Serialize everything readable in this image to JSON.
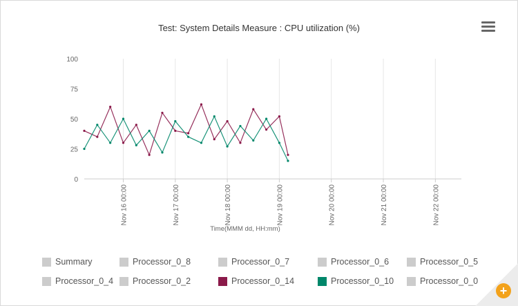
{
  "chart_data": {
    "type": "line",
    "title": "Test: System Details Measure : CPU utilization (%)",
    "xlabel": "Time(MMM dd, HH:mm)",
    "ylabel": "",
    "ylim": [
      0,
      100
    ],
    "yticks": [
      "0",
      "25",
      "50",
      "75",
      "100"
    ],
    "xlim": [
      "Nov 15 06:00",
      "Nov 22 12:00"
    ],
    "xticks": [
      {
        "t": "Nov 16 00:00",
        "label": "Nov 16 00:00"
      },
      {
        "t": "Nov 17 00:00",
        "label": "Nov 17 00:00"
      },
      {
        "t": "Nov 18 00:00",
        "label": "Nov 18 00:00"
      },
      {
        "t": "Nov 19 00:00",
        "label": "Nov 19 00:00"
      },
      {
        "t": "Nov 20 00:00",
        "label": "Nov 20 00:00"
      },
      {
        "t": "Nov 21 00:00",
        "label": "Nov 21 00:00"
      },
      {
        "t": "Nov 22 00:00",
        "label": "Nov 22 00:00"
      }
    ],
    "grid": "vertical",
    "series": [
      {
        "name": "Processor_0_14",
        "color": "#8b1a4a",
        "x": [
          "Nov 15 06:00",
          "Nov 15 12:00",
          "Nov 15 18:00",
          "Nov 16 00:00",
          "Nov 16 06:00",
          "Nov 16 12:00",
          "Nov 16 18:00",
          "Nov 17 00:00",
          "Nov 17 06:00",
          "Nov 17 12:00",
          "Nov 17 18:00",
          "Nov 18 00:00",
          "Nov 18 06:00",
          "Nov 18 12:00",
          "Nov 18 18:00",
          "Nov 19 00:00",
          "Nov 19 04:00"
        ],
        "values": [
          40,
          35,
          60,
          30,
          45,
          20,
          55,
          40,
          38,
          62,
          33,
          48,
          30,
          58,
          41,
          52,
          20
        ]
      },
      {
        "name": "Processor_0_10",
        "color": "#00876a",
        "x": [
          "Nov 15 06:00",
          "Nov 15 12:00",
          "Nov 15 18:00",
          "Nov 16 00:00",
          "Nov 16 06:00",
          "Nov 16 12:00",
          "Nov 16 18:00",
          "Nov 17 00:00",
          "Nov 17 06:00",
          "Nov 17 12:00",
          "Nov 17 18:00",
          "Nov 18 00:00",
          "Nov 18 06:00",
          "Nov 18 12:00",
          "Nov 18 18:00",
          "Nov 19 00:00",
          "Nov 19 04:00"
        ],
        "values": [
          25,
          45,
          30,
          50,
          28,
          40,
          22,
          48,
          35,
          30,
          52,
          27,
          44,
          32,
          50,
          30,
          15
        ]
      }
    ],
    "legend": {
      "placement": "bottom",
      "items": [
        {
          "label": "Summary",
          "color": "#cccccc"
        },
        {
          "label": "Processor_0_8",
          "color": "#cccccc"
        },
        {
          "label": "Processor_0_7",
          "color": "#cccccc"
        },
        {
          "label": "Processor_0_6",
          "color": "#cccccc"
        },
        {
          "label": "Processor_0_5",
          "color": "#cccccc"
        },
        {
          "label": "Processor_0_4",
          "color": "#cccccc"
        },
        {
          "label": "Processor_0_2",
          "color": "#cccccc"
        },
        {
          "label": "Processor_0_14",
          "color": "#8b1a4a"
        },
        {
          "label": "Processor_0_10",
          "color": "#00876a"
        },
        {
          "label": "Processor_0_0",
          "color": "#cccccc"
        }
      ]
    }
  },
  "toolbar": {
    "menu_icon": "hamburger-menu-icon",
    "zoom_icon": "zoom-in-icon",
    "zoom_glyph": "+"
  }
}
